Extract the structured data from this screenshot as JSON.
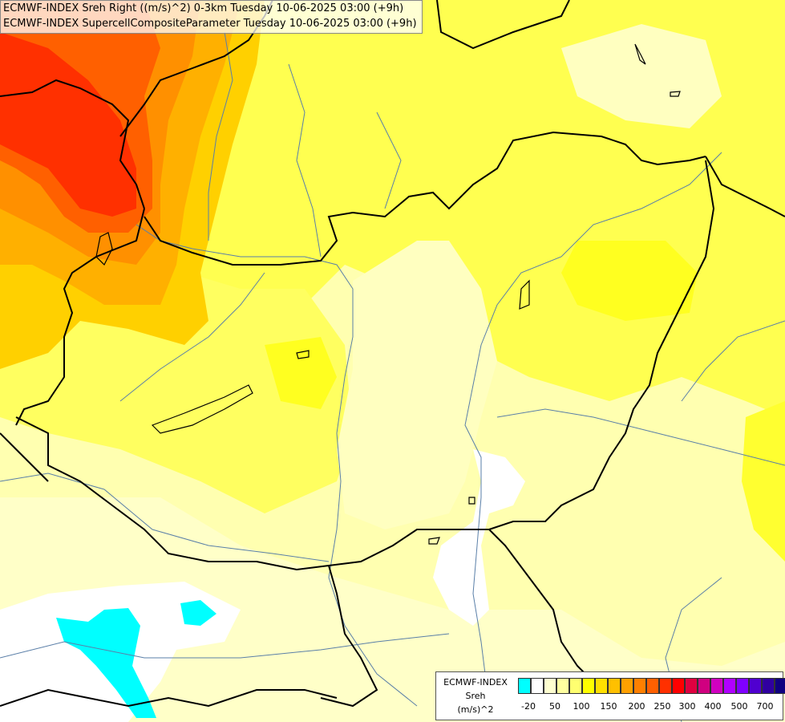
{
  "titles": [
    "ECMWF-INDEX Sreh Right ((m/s)^2) 0-3km Tuesday 10-06-2025 03:00 (+9h)",
    "ECMWF-INDEX SupercellCompositeParameter Tuesday 10-06-2025 03:00 (+9h)"
  ],
  "legend": {
    "line1": "ECMWF-INDEX",
    "line2": "Sreh",
    "line3": "(m/s)^2",
    "colors": [
      "#00ffff",
      "#ffffff",
      "#ffffd0",
      "#ffffa0",
      "#ffff70",
      "#ffff00",
      "#ffe000",
      "#ffc000",
      "#ffa000",
      "#ff8000",
      "#ff6000",
      "#ff3000",
      "#ff0000",
      "#e00040",
      "#d00080",
      "#d000c0",
      "#b000ff",
      "#8000ff",
      "#5000d0",
      "#3000a0",
      "#100080"
    ],
    "ticks": [
      "-20",
      "50",
      "100",
      "150",
      "200",
      "250",
      "300",
      "400",
      "500",
      "700"
    ]
  },
  "colors": {
    "cyan": "#00ffff",
    "white": "#ffffff",
    "pale_yellow": "#ffffb0",
    "yellow": "#ffff40",
    "gold": "#ffe000",
    "orange": "#ffa000",
    "red": "#ff4000"
  }
}
